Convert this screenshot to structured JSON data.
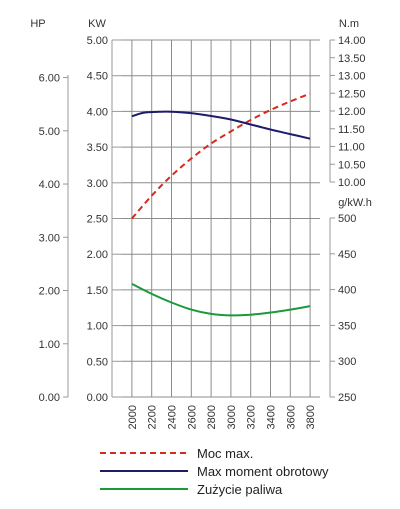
{
  "chart_data": {
    "type": "line",
    "units": {
      "hp": "HP",
      "kw": "KW",
      "torque": "N.m",
      "fuel": "g/kW.h"
    },
    "x": [
      2000,
      2200,
      2400,
      2600,
      2800,
      3000,
      3200,
      3400,
      3600,
      3800
    ],
    "x_ticks": [
      "2000",
      "2200",
      "2400",
      "2600",
      "2800",
      "3000",
      "3200",
      "3400",
      "3600",
      "3800"
    ],
    "kw_axis": {
      "ylim": [
        0,
        5
      ],
      "ticks": [
        "0.00",
        "0.50",
        "1.00",
        "1.50",
        "2.00",
        "2.50",
        "3.00",
        "3.50",
        "4.00",
        "4.50",
        "5.00"
      ]
    },
    "hp_axis": {
      "ticks": [
        "0.00",
        "1.00",
        "2.00",
        "3.00",
        "4.00",
        "5.00",
        "6.00"
      ]
    },
    "torque_axis": {
      "ylim": [
        10,
        14
      ],
      "ticks": [
        "10.00",
        "10.50",
        "11.00",
        "11.50",
        "12.00",
        "12.50",
        "13.00",
        "13.50",
        "14.00"
      ]
    },
    "fuel_axis": {
      "ylim": [
        250,
        500
      ],
      "ticks": [
        "250",
        "300",
        "350",
        "400",
        "450",
        "500"
      ]
    },
    "series": [
      {
        "name": "Moc max.",
        "axis": "kw",
        "color": "#d62a1e",
        "style": "dashed",
        "x": [
          2000,
          2200,
          2400,
          2600,
          2800,
          3000,
          3200,
          3400,
          3600,
          3800
        ],
        "values": [
          2.5,
          2.82,
          3.1,
          3.34,
          3.55,
          3.72,
          3.88,
          4.02,
          4.14,
          4.25
        ]
      },
      {
        "name": "Max moment obrotowy",
        "axis": "torque",
        "color": "#1f1b6b",
        "style": "solid",
        "x": [
          2000,
          2100,
          2200,
          2300,
          2400,
          2600,
          2800,
          3000,
          3200,
          3400,
          3600,
          3800
        ],
        "values": [
          11.85,
          11.94,
          11.97,
          11.98,
          11.98,
          11.94,
          11.86,
          11.76,
          11.62,
          11.48,
          11.35,
          11.22
        ]
      },
      {
        "name": "Zużycie paliwa",
        "axis": "fuel",
        "color": "#1a9a3c",
        "style": "solid",
        "x": [
          2000,
          2200,
          2400,
          2600,
          2800,
          3000,
          3200,
          3400,
          3600,
          3800
        ],
        "values": [
          408,
          394,
          382,
          372,
          366,
          364,
          365,
          368,
          372,
          377
        ]
      }
    ]
  }
}
